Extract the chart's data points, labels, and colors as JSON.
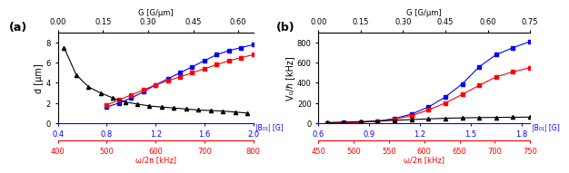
{
  "panel_a": {
    "title": "(a)",
    "ylabel": "d [μm]",
    "ylim": [
      0,
      9
    ],
    "yticks": [
      0,
      2,
      4,
      6,
      8
    ],
    "xbot_blue_label": "|B₀₁| [G]",
    "xbot_blue_lim": [
      0.4,
      2.0
    ],
    "xbot_blue_ticks": [
      0.4,
      0.8,
      1.2,
      1.6,
      2.0
    ],
    "xbot_red_label": "ω/2π [kHz]",
    "xbot_red_lim": [
      400,
      800
    ],
    "xbot_red_ticks": [
      400,
      500,
      600,
      700,
      800
    ],
    "xtop_label": "G [G/μm]",
    "xtop_lim": [
      0.0,
      0.65
    ],
    "xtop_ticks": [
      0.0,
      0.15,
      0.3,
      0.45,
      0.6
    ],
    "blue_x": [
      0.8,
      0.9,
      1.0,
      1.1,
      1.2,
      1.3,
      1.4,
      1.5,
      1.6,
      1.7,
      1.8,
      1.9,
      2.0
    ],
    "blue_y": [
      1.6,
      2.0,
      2.5,
      3.1,
      3.8,
      4.4,
      5.0,
      5.6,
      6.2,
      6.8,
      7.2,
      7.5,
      7.8
    ],
    "red_x": [
      0.8,
      0.9,
      1.0,
      1.1,
      1.2,
      1.3,
      1.4,
      1.5,
      1.6,
      1.7,
      1.8,
      1.9,
      2.0
    ],
    "red_y": [
      1.8,
      2.3,
      2.8,
      3.3,
      3.8,
      4.2,
      4.6,
      5.0,
      5.4,
      5.8,
      6.2,
      6.5,
      6.8
    ],
    "black_x": [
      0.45,
      0.55,
      0.65,
      0.75,
      0.85,
      0.95,
      1.05,
      1.15,
      1.25,
      1.35,
      1.45,
      1.55,
      1.65,
      1.75,
      1.85,
      1.95
    ],
    "black_y": [
      7.5,
      4.8,
      3.6,
      3.0,
      2.5,
      2.1,
      1.9,
      1.7,
      1.6,
      1.5,
      1.4,
      1.3,
      1.25,
      1.2,
      1.1,
      1.0
    ]
  },
  "panel_b": {
    "title": "(b)",
    "ylabel": "V₀/ℏ [kHz]",
    "ylim": [
      0,
      900
    ],
    "yticks": [
      0,
      200,
      400,
      600,
      800
    ],
    "xbot_blue_label": "|B₀₁| [G]",
    "xbot_blue_lim": [
      0.6,
      1.85
    ],
    "xbot_blue_ticks": [
      0.6,
      0.9,
      1.2,
      1.5,
      1.8
    ],
    "xbot_red_label": "ω/2π [kHz]",
    "xbot_red_lim": [
      450,
      750
    ],
    "xbot_red_ticks": [
      450,
      500,
      550,
      600,
      650,
      700,
      750
    ],
    "xtop_label": "G [G/μm]",
    "xtop_lim": [
      0.0,
      0.75
    ],
    "xtop_ticks": [
      0.0,
      0.15,
      0.3,
      0.45,
      0.6,
      0.75
    ],
    "blue_x": [
      0.65,
      0.75,
      0.85,
      0.95,
      1.05,
      1.15,
      1.25,
      1.35,
      1.45,
      1.55,
      1.65,
      1.75,
      1.85
    ],
    "blue_y": [
      2,
      5,
      10,
      20,
      45,
      90,
      160,
      260,
      390,
      560,
      680,
      750,
      810
    ],
    "red_x": [
      0.65,
      0.75,
      0.85,
      0.95,
      1.05,
      1.15,
      1.25,
      1.35,
      1.45,
      1.55,
      1.65,
      1.75,
      1.85
    ],
    "red_y": [
      1,
      3,
      8,
      18,
      38,
      75,
      130,
      200,
      285,
      375,
      460,
      510,
      550
    ],
    "black_x": [
      0.65,
      0.75,
      0.85,
      0.95,
      1.05,
      1.15,
      1.25,
      1.35,
      1.45,
      1.55,
      1.65,
      1.75,
      1.85
    ],
    "black_y": [
      5,
      10,
      15,
      20,
      28,
      35,
      42,
      48,
      52,
      55,
      57,
      58,
      60
    ]
  },
  "blue_color": "#0000FF",
  "red_color": "#FF0000",
  "black_color": "#000000",
  "marker_size": 3,
  "linewidth": 0.8
}
